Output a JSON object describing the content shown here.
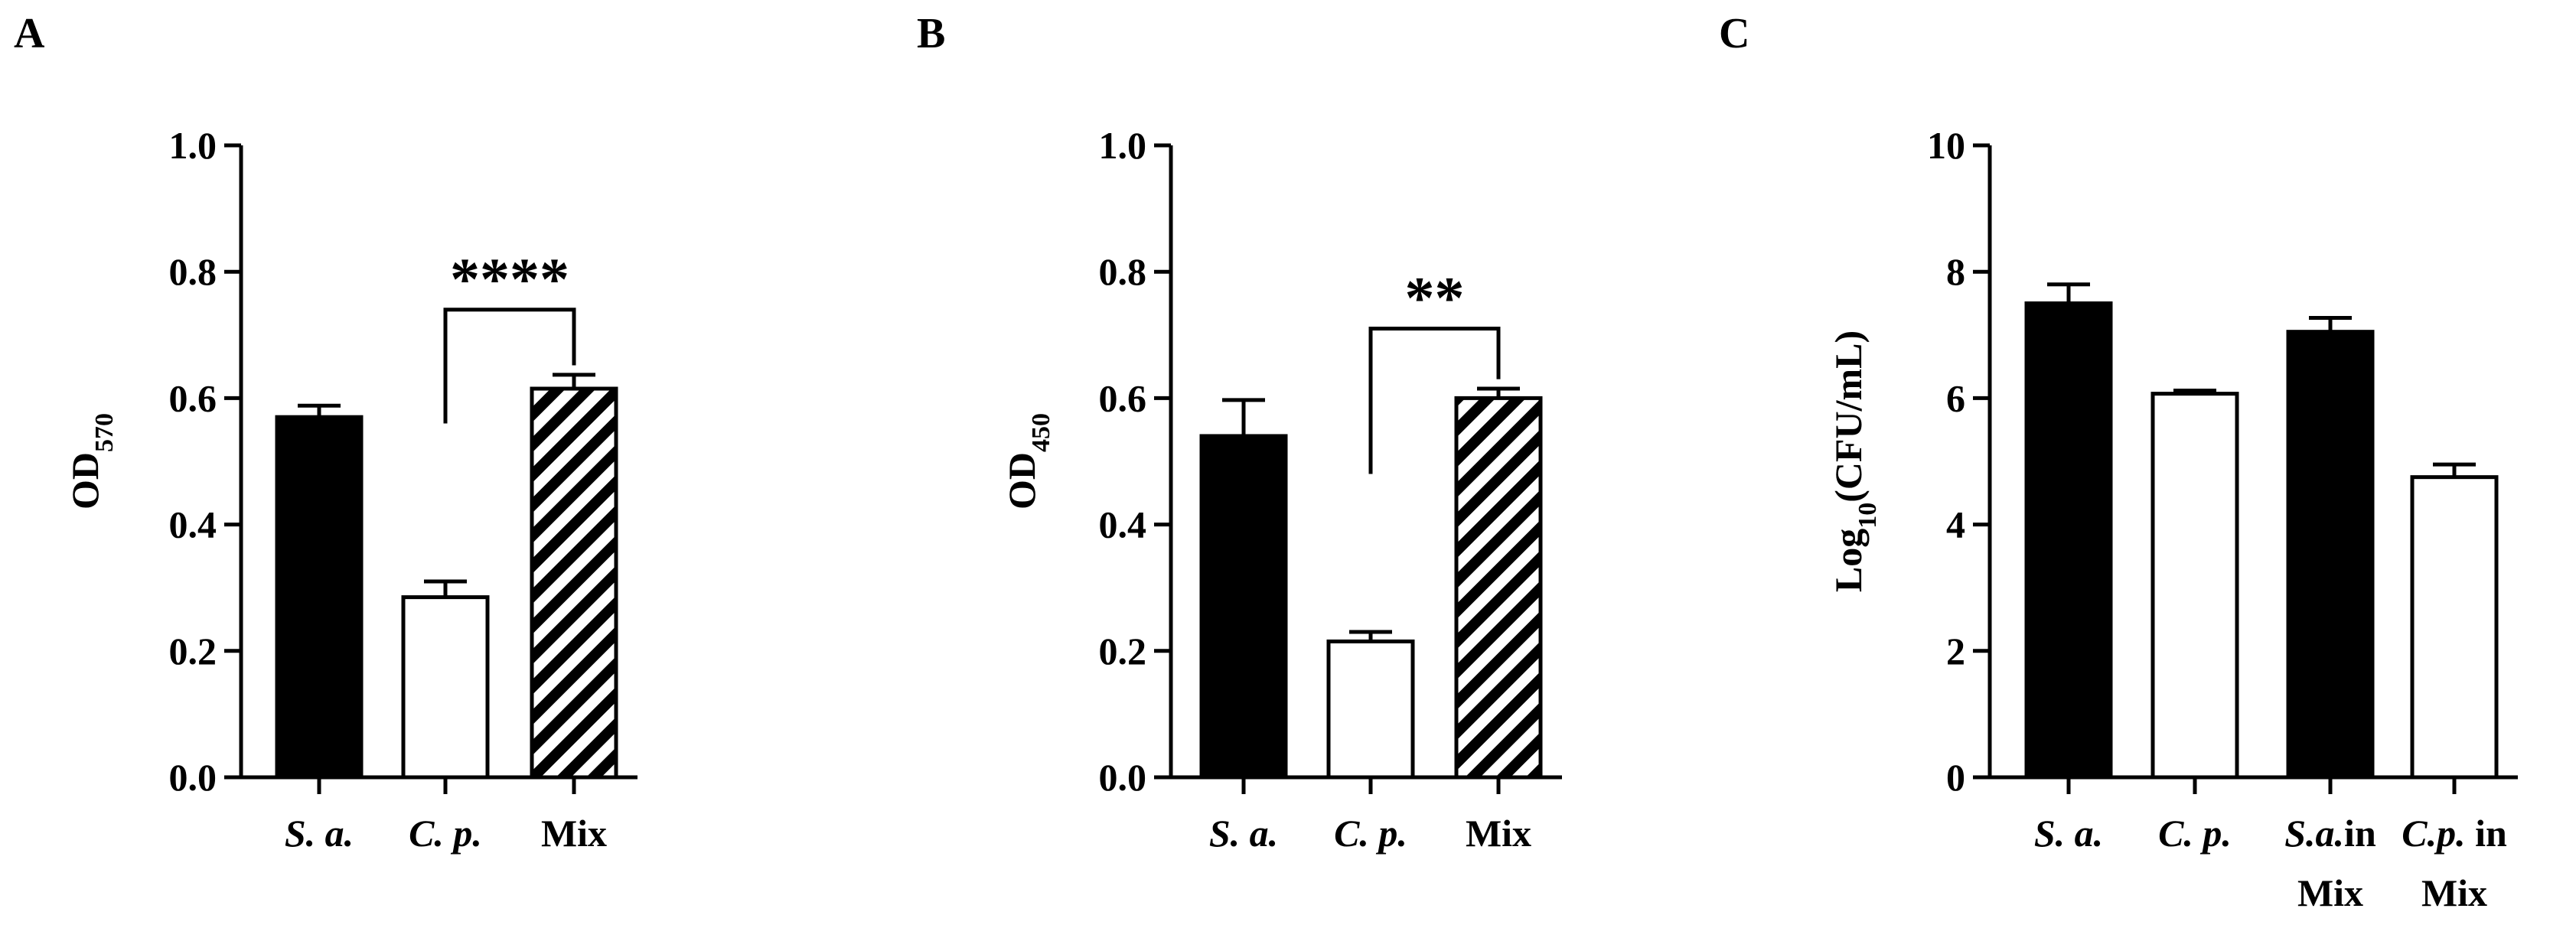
{
  "chart_data": [
    {
      "type": "bar",
      "panel_label": "A",
      "ylabel": {
        "main": "OD",
        "sub": "570",
        "suffix": ""
      },
      "ylim": [
        0,
        1.0
      ],
      "yticks": [
        "0.0",
        "0.2",
        "0.4",
        "0.6",
        "0.8",
        "1.0"
      ],
      "categories": [
        {
          "lines": [
            [
              {
                "text": "S. a.",
                "italic": true
              }
            ]
          ]
        },
        {
          "lines": [
            [
              {
                "text": "C. p.",
                "italic": true
              }
            ]
          ]
        },
        {
          "lines": [
            [
              {
                "text": "Mix",
                "italic": false
              }
            ]
          ]
        }
      ],
      "values": [
        0.57,
        0.285,
        0.615
      ],
      "errors": [
        0.018,
        0.025,
        0.022
      ],
      "fills": [
        "solid",
        "empty",
        "hatch"
      ],
      "significance": {
        "from": 1,
        "to": 2,
        "label": "****",
        "bracket_y": 0.74
      }
    },
    {
      "type": "bar",
      "panel_label": "B",
      "ylabel": {
        "main": "OD",
        "sub": "450",
        "suffix": ""
      },
      "ylim": [
        0,
        1.0
      ],
      "yticks": [
        "0.0",
        "0.2",
        "0.4",
        "0.6",
        "0.8",
        "1.0"
      ],
      "categories": [
        {
          "lines": [
            [
              {
                "text": "S. a.",
                "italic": true
              }
            ]
          ]
        },
        {
          "lines": [
            [
              {
                "text": "C. p.",
                "italic": true
              }
            ]
          ]
        },
        {
          "lines": [
            [
              {
                "text": "Mix",
                "italic": false
              }
            ]
          ]
        }
      ],
      "values": [
        0.54,
        0.215,
        0.6
      ],
      "errors": [
        0.057,
        0.015,
        0.015
      ],
      "fills": [
        "solid",
        "empty",
        "hatch"
      ],
      "significance": {
        "from": 1,
        "to": 2,
        "label": "**",
        "bracket_y": 0.71
      }
    },
    {
      "type": "bar",
      "panel_label": "C",
      "ylabel": {
        "main": "Log",
        "sub": "10",
        "suffix": "(CFU/mL)"
      },
      "ylim": [
        0,
        10
      ],
      "yticks": [
        "0",
        "2",
        "4",
        "6",
        "8",
        "10"
      ],
      "categories": [
        {
          "lines": [
            [
              {
                "text": "S. a.",
                "italic": true
              }
            ]
          ]
        },
        {
          "lines": [
            [
              {
                "text": "C. p.",
                "italic": true
              }
            ]
          ]
        },
        {
          "lines": [
            [
              {
                "text": "S.a.",
                "italic": true
              },
              {
                "text": "in",
                "italic": false
              }
            ],
            [
              {
                "text": "Mix",
                "italic": false
              }
            ]
          ]
        },
        {
          "lines": [
            [
              {
                "text": "C.p.",
                "italic": true
              },
              {
                "text": " in",
                "italic": false
              }
            ],
            [
              {
                "text": "Mix",
                "italic": false
              }
            ]
          ]
        }
      ],
      "values": [
        7.5,
        6.07,
        7.05,
        4.75
      ],
      "errors": [
        0.3,
        0.05,
        0.22,
        0.2
      ],
      "fills": [
        "solid",
        "empty",
        "solid",
        "empty"
      ],
      "significance": null
    }
  ]
}
